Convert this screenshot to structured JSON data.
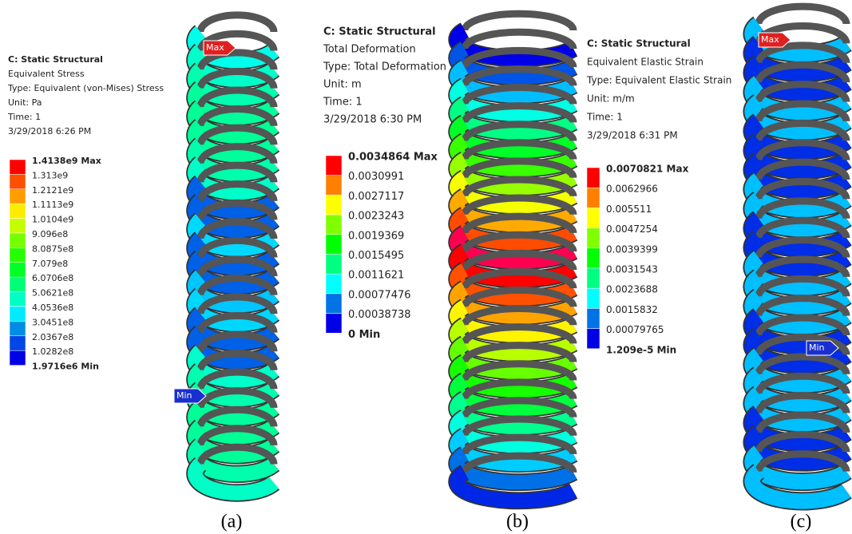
{
  "panels": [
    {
      "title": "C: Static Structural",
      "lines": [
        "Equivalent Stress",
        "Type: Equivalent (von-Mises) Stress",
        "Unit: Pa",
        "Time: 1",
        "3/29/2018 6:26 PM"
      ],
      "legend": [
        "1.4138e9 Max",
        "1.313e9",
        "1.2121e9",
        "1.1113e9",
        "1.0104e9",
        "9.096e8",
        "8.0875e8",
        "7.079e8",
        "6.0706e8",
        "5.0621e8",
        "4.0536e8",
        "3.0451e8",
        "2.0367e8",
        "1.0282e8",
        "1.9716e6 Min"
      ],
      "max_tag": "Max",
      "min_tag": "Min",
      "caption": "(a)"
    },
    {
      "title": "C: Static Structural",
      "lines": [
        "Total Deformation",
        "Type: Total Deformation",
        "Unit: m",
        "Time: 1",
        "3/29/2018 6:30 PM"
      ],
      "legend": [
        "0.0034864 Max",
        "0.0030991",
        "0.0027117",
        "0.0023243",
        "0.0019369",
        "0.0015495",
        "0.0011621",
        "0.00077476",
        "0.00038738",
        "0 Min"
      ],
      "caption": "(b)"
    },
    {
      "title": "C: Static Structural",
      "lines": [
        "Equivalent Elastic Strain",
        "Type: Equivalent Elastic Strain",
        "Unit: m/m",
        "Time: 1",
        "3/29/2018 6:31 PM"
      ],
      "legend": [
        "0.0070821 Max",
        "0.0062966",
        "0.005511",
        "0.0047254",
        "0.0039399",
        "0.0031543",
        "0.0023688",
        "0.0015832",
        "0.00079765",
        "1.209e-5 Min"
      ],
      "max_tag": "Max",
      "min_tag": "Min",
      "caption": "(c)"
    }
  ]
}
